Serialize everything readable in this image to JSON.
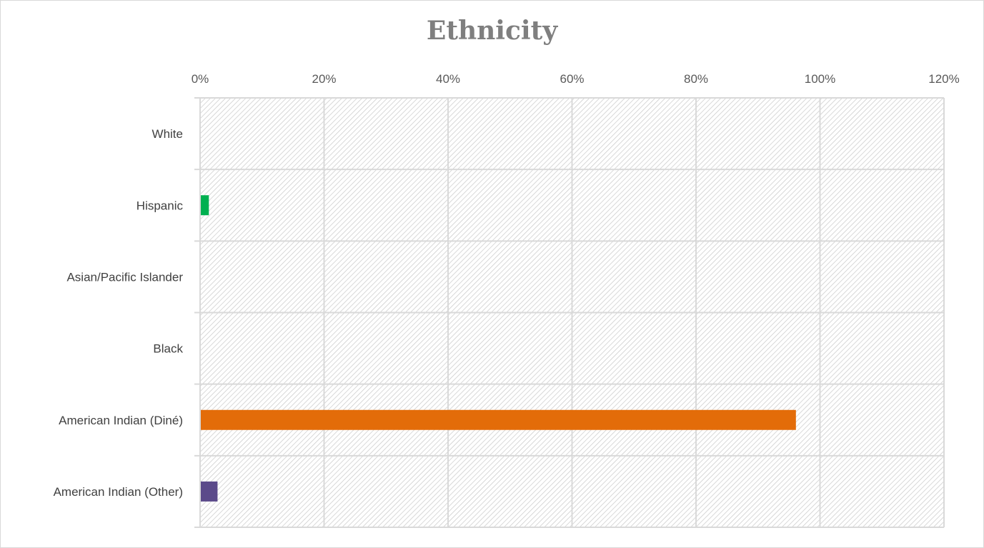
{
  "chart_data": {
    "type": "bar",
    "orientation": "horizontal",
    "title": "Ethnicity",
    "xlabel": "",
    "ylabel": "",
    "xlim": [
      0,
      1.2
    ],
    "x_ticks": [
      0,
      0.2,
      0.4,
      0.6,
      0.8,
      1.0,
      1.2
    ],
    "x_tick_labels": [
      "0%",
      "20%",
      "40%",
      "60%",
      "80%",
      "100%",
      "120%"
    ],
    "x_axis_position": "top",
    "grid": true,
    "legend": "none",
    "categories": [
      "White",
      "Hispanic",
      "Asian/Pacific Islander",
      "Black",
      "American Indian (Diné)",
      "American Indian (Other)"
    ],
    "values": [
      0.0,
      0.013,
      0.0,
      0.0,
      0.96,
      0.027
    ],
    "colors": [
      "#4472c4",
      "#00b050",
      "#ffc000",
      "#7f7f7f",
      "#e36c09",
      "#5b4a8a"
    ]
  }
}
